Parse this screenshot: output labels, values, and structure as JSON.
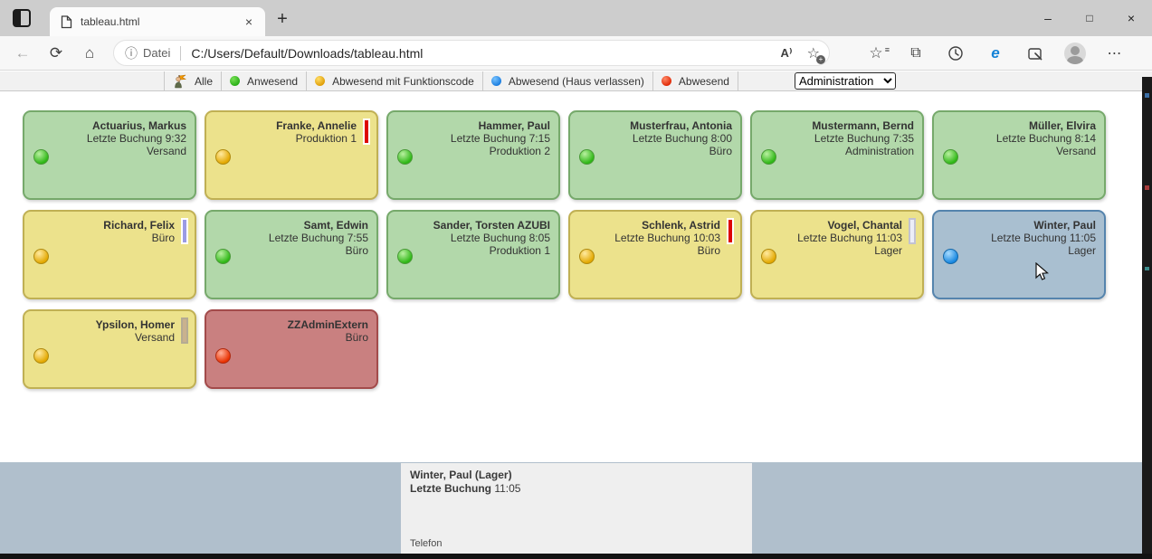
{
  "browser": {
    "tab_title": "tableau.html",
    "address": {
      "scheme_label": "Datei",
      "url": "C:/Users/Default/Downloads/tableau.html"
    }
  },
  "icons": {
    "back": "←",
    "refresh": "⟳",
    "home": "⌂",
    "info": "ⓘ",
    "read_aloud": "A⁾",
    "favorites_star": "☆",
    "favorites_lines": "≡",
    "star_add": "☆",
    "star_add_plus": "+",
    "collections": "⧉",
    "ie_mode": "e",
    "settings_dots": "⋯",
    "tab_close": "×",
    "new_tab": "+",
    "minimize": "–",
    "maximize": "□",
    "close": "×",
    "cursor_help_mark": "?"
  },
  "legend": {
    "items": [
      {
        "id": "alle",
        "label": "Alle",
        "icon": "people"
      },
      {
        "id": "anwesend",
        "label": "Anwesend",
        "c1": "#77e055",
        "c2": "#22aa11"
      },
      {
        "id": "abwesend-mit-funktionscode",
        "label": "Abwesend mit Funktionscode",
        "c1": "#ffdd66",
        "c2": "#dd9900"
      },
      {
        "id": "abwesend-haus-verlassen",
        "label": "Abwesend (Haus verlassen)",
        "c1": "#77c2ff",
        "c2": "#1378dd"
      },
      {
        "id": "abwesend",
        "label": "Abwesend",
        "c1": "#ff8866",
        "c2": "#dd2200"
      }
    ],
    "filter_value": "Administration",
    "filter_options": [
      "Administration"
    ]
  },
  "status_styles": {
    "green": {
      "bg": "#b2d8aa",
      "border": "#76a96b",
      "orb1": "#b9f0a0",
      "orb2": "#2db714",
      "orb_border": "#4a9a38"
    },
    "yellow": {
      "bg": "#ece28c",
      "border": "#c0b054",
      "orb1": "#ffeaa0",
      "orb2": "#e3a800",
      "orb_border": "#b08a10"
    },
    "blue": {
      "bg": "#a9bfd0",
      "border": "#5584ad",
      "orb1": "#a8dcff",
      "orb2": "#1787e0",
      "orb_border": "#1568a8"
    },
    "red": {
      "bg": "#c98080",
      "border": "#a34b4b",
      "orb1": "#ffb09a",
      "orb2": "#e93000",
      "orb_border": "#b02a10"
    }
  },
  "indicator_styles": {
    "red": {
      "color": "#dd0505",
      "border": "#ffffff"
    },
    "periwinkle": {
      "color": "#9b9be4",
      "border": "#ffffff"
    },
    "lavender": {
      "color": "#eceef8",
      "border": "#c2c2d2"
    },
    "tan": {
      "color": "#c9b28e",
      "border": "#b5ab93"
    }
  },
  "board": {
    "cards": [
      {
        "name": "Actuarius, Markus",
        "lines": [
          "Letzte Buchung 9:32",
          "Versand"
        ],
        "status": "green"
      },
      {
        "name": "Franke, Annelie",
        "lines": [
          "Produktion 1"
        ],
        "status": "yellow",
        "indicator": "red"
      },
      {
        "name": "Hammer, Paul",
        "lines": [
          "Letzte Buchung 7:15",
          "Produktion 2"
        ],
        "status": "green"
      },
      {
        "name": "Musterfrau, Antonia",
        "lines": [
          "Letzte Buchung 8:00",
          "Büro"
        ],
        "status": "green"
      },
      {
        "name": "Mustermann, Bernd",
        "lines": [
          "Letzte Buchung 7:35",
          "Administration"
        ],
        "status": "green"
      },
      {
        "name": "Müller, Elvira",
        "lines": [
          "Letzte Buchung 8:14",
          "Versand"
        ],
        "status": "green"
      },
      {
        "name": "Richard, Felix",
        "lines": [
          "Büro"
        ],
        "status": "yellow",
        "indicator": "periwinkle"
      },
      {
        "name": "Samt, Edwin",
        "lines": [
          "Letzte Buchung 7:55",
          "Büro"
        ],
        "status": "green"
      },
      {
        "name": "Sander, Torsten AZUBI",
        "lines": [
          "Letzte Buchung 8:05",
          "Produktion 1"
        ],
        "status": "green"
      },
      {
        "name": "Schlenk, Astrid",
        "lines": [
          "Letzte Buchung 10:03",
          "Büro"
        ],
        "status": "yellow",
        "indicator": "red"
      },
      {
        "name": "Vogel, Chantal",
        "lines": [
          "Letzte Buchung 11:03",
          "Lager"
        ],
        "status": "yellow",
        "indicator": "lavender"
      },
      {
        "name": "Winter, Paul",
        "lines": [
          "Letzte Buchung 11:05",
          "Lager"
        ],
        "status": "blue",
        "cursor": true
      },
      {
        "name": "Ypsilon, Homer",
        "lines": [
          "Versand"
        ],
        "status": "yellow",
        "indicator": "tan"
      },
      {
        "name": "ZZAdminExtern",
        "lines": [
          "Büro"
        ],
        "status": "red"
      }
    ]
  },
  "detail_panel": {
    "title": "Winter, Paul (Lager)",
    "label": "Letzte Buchung",
    "value": " 11:05",
    "footer": "Telefon"
  }
}
